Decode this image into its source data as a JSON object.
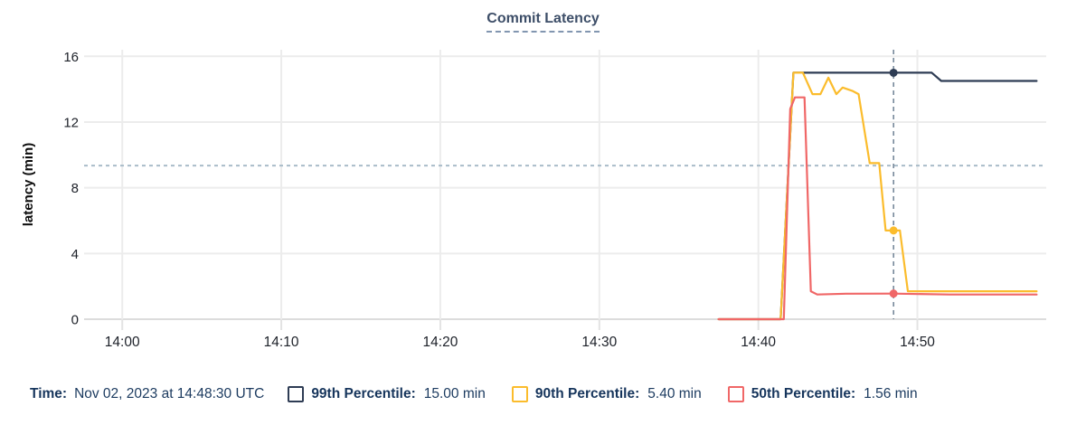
{
  "title": "Commit Latency",
  "legend": {
    "time_label": "Time:",
    "time_value": "Nov 02, 2023 at 14:48:30 UTC",
    "items": [
      {
        "id": "99th-percentile",
        "label": "99th Percentile:",
        "value": "15.00 min",
        "color": "#2e3c54"
      },
      {
        "id": "90th-percentile",
        "label": "90th Percentile:",
        "value": "5.40 min",
        "color": "#fbbc2c"
      },
      {
        "id": "50th-percentile",
        "label": "50th Percentile:",
        "value": "1.56 min",
        "color": "#f06767"
      }
    ]
  },
  "chart_data": {
    "type": "line",
    "title": "Commit Latency",
    "xlabel": "",
    "ylabel": "latency (min)",
    "x_unit": "minutes after 14:00 UTC on Nov 02, 2023",
    "xticks": [
      {
        "t": 0,
        "label": "14:00"
      },
      {
        "t": 10,
        "label": "14:10"
      },
      {
        "t": 20,
        "label": "14:20"
      },
      {
        "t": 30,
        "label": "14:30"
      },
      {
        "t": 40,
        "label": "14:40"
      },
      {
        "t": 50,
        "label": "14:50"
      }
    ],
    "yticks": [
      0,
      4,
      8,
      12,
      16
    ],
    "xlim": [
      -2.4,
      58.1
    ],
    "ylim": [
      0,
      16.4
    ],
    "grid": true,
    "legend_position": "bottom",
    "threshold_line": {
      "value": 9.35,
      "style": "dotted",
      "color": "#a9bcc9"
    },
    "cursor": {
      "t": 48.5,
      "label": "14:48:30",
      "style": "dashed",
      "color": "#64788c"
    },
    "series": [
      {
        "name": "99th Percentile",
        "color": "#2e3c54",
        "points": [
          [
            37.5,
            0
          ],
          [
            41.4,
            0
          ],
          [
            42.2,
            15
          ],
          [
            50.9,
            15
          ],
          [
            51.5,
            14.5
          ],
          [
            57.5,
            14.5
          ]
        ],
        "marker": {
          "t": 48.5,
          "v": 15.0
        }
      },
      {
        "name": "90th Percentile",
        "color": "#fbbc2c",
        "points": [
          [
            37.5,
            0
          ],
          [
            41.4,
            0
          ],
          [
            42.2,
            15
          ],
          [
            42.8,
            15
          ],
          [
            43.4,
            13.7
          ],
          [
            43.9,
            13.7
          ],
          [
            44.4,
            14.7
          ],
          [
            44.9,
            13.7
          ],
          [
            45.3,
            14.1
          ],
          [
            45.9,
            13.9
          ],
          [
            46.3,
            13.7
          ],
          [
            47.0,
            9.5
          ],
          [
            47.6,
            9.5
          ],
          [
            48.0,
            5.4
          ],
          [
            48.9,
            5.4
          ],
          [
            49.4,
            1.7
          ],
          [
            57.5,
            1.7
          ]
        ],
        "marker": {
          "t": 48.5,
          "v": 5.4
        }
      },
      {
        "name": "50th Percentile",
        "color": "#f06767",
        "points": [
          [
            37.5,
            0
          ],
          [
            41.6,
            0
          ],
          [
            42.0,
            12.8
          ],
          [
            42.3,
            13.5
          ],
          [
            42.9,
            13.5
          ],
          [
            43.3,
            1.7
          ],
          [
            43.7,
            1.5
          ],
          [
            45.5,
            1.55
          ],
          [
            48.5,
            1.56
          ],
          [
            52.0,
            1.5
          ],
          [
            57.5,
            1.5
          ]
        ],
        "marker": {
          "t": 48.5,
          "v": 1.56
        }
      }
    ]
  }
}
